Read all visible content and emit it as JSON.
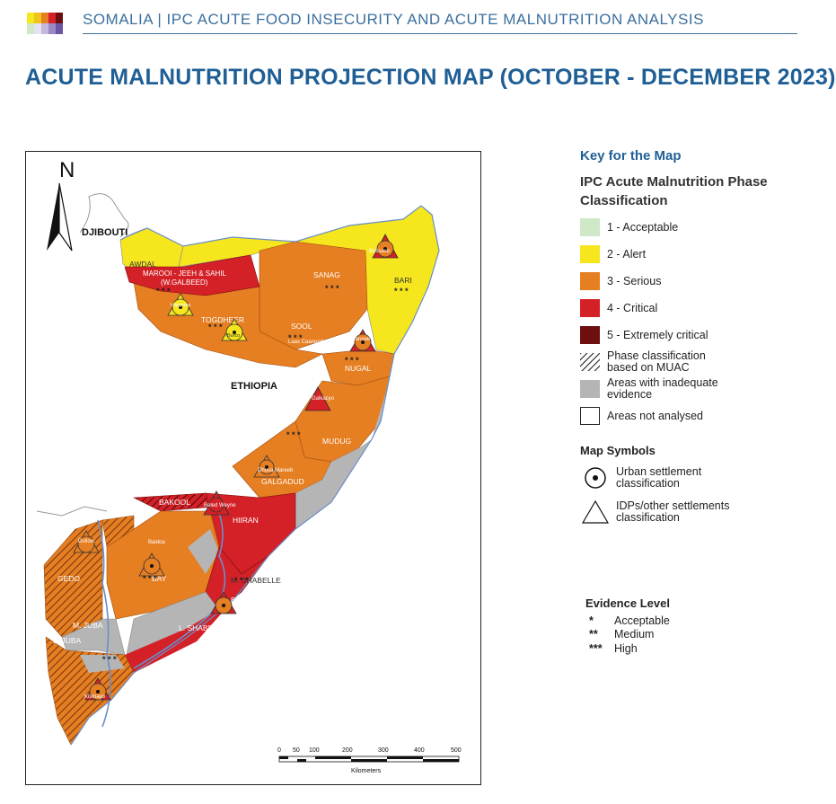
{
  "header": {
    "title": "SOMALIA | IPC ACUTE FOOD INSECURITY AND ACUTE MALNUTRITION ANALYSIS",
    "logo_colors": [
      "#c9e6c0",
      "#f5e60a",
      "#e87c25",
      "#d42020",
      "#6b0e0e",
      "#d8d0e8",
      "#b5a7d4",
      "#8c78bd",
      "#5e4a98"
    ]
  },
  "main_title": "ACUTE MALNUTRITION PROJECTION MAP (OCTOBER - DECEMBER 2023)",
  "map": {
    "north_label": "N",
    "labels": {
      "djibouti": "DJIBOUTI",
      "ethiopia": "ETHIOPIA",
      "awdal": "AWDAL",
      "marooi": "MAROOI - JEEH & SAHIL",
      "wgalbeed": "(W.GALBEED)",
      "togdheer": "TOGDHEER",
      "sanag": "SANAG",
      "sool": "SOOL",
      "bari": "BARI",
      "nugal": "NUGAL",
      "mudug": "MUDUG",
      "galgadud": "GALGADUD",
      "bakool": "BAKOOL",
      "hiiran": "HIIRAN",
      "gedo": "GEDO",
      "bay": "BAY",
      "m_shabelle": "M. SHABELLE",
      "banadir": "BANADIR",
      "l_shabelle": "L. SHABELLE",
      "m_juba": "M. JUBA",
      "l_juba": "L. JUBA",
      "bossaso": "Bossaso",
      "garowe": "Garowe",
      "galkacyo": "Galkacyo",
      "beled_weyne": "Beled Weyne",
      "dhusamareb": "Dhusa Mareeb",
      "laascaanood": "Laas Caanood",
      "hargeisa": "Hargeisa",
      "burco": "Burco",
      "dollow": "Dollow",
      "baidoa": "Baidoa",
      "kismayo": "Kismayo"
    },
    "scale": {
      "ticks": [
        "0",
        "50",
        "100",
        "200",
        "300",
        "400",
        "500"
      ],
      "unit": "Kilometers"
    }
  },
  "legend": {
    "key_title": "Key for the Map",
    "phase_title": "IPC Acute Malnutrition Phase Classification",
    "phases": [
      {
        "label": "1 - Acceptable",
        "color": "#cfe8c8"
      },
      {
        "label": "2 - Alert",
        "color": "#f5e61e"
      },
      {
        "label": "3 - Serious",
        "color": "#e67e22"
      },
      {
        "label": "4 - Critical",
        "color": "#d42027"
      },
      {
        "label": "5 - Extremely critical",
        "color": "#6e0f0f"
      }
    ],
    "muac_label": "Phase classification based on MUAC",
    "inadequate_label": "Areas with inadequate evidence",
    "inadequate_color": "#b5b5b5",
    "not_analysed_label": "Areas not analysed",
    "symbols_title": "Map Symbols",
    "urban_label": "Urban settlement classification",
    "idp_label": "IDPs/other settlements classification",
    "evidence_title": "Evidence Level",
    "evidence": [
      {
        "stars": "*",
        "label": "Acceptable"
      },
      {
        "stars": "**",
        "label": "Medium"
      },
      {
        "stars": "***",
        "label": "High"
      }
    ]
  }
}
